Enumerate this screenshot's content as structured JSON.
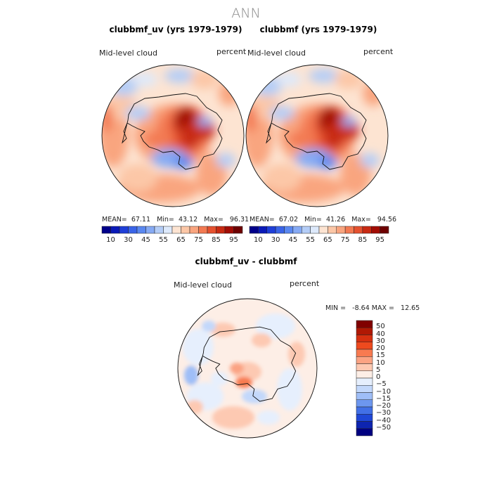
{
  "chart_data": {
    "type": "contour-map",
    "suptitle": "ANN",
    "panels": [
      {
        "title": "clubbmf_uv (yrs 1979-1979)",
        "left_label": "Mid-level cloud",
        "right_label": "percent",
        "mean": "67.11",
        "min": "43.12",
        "max": "96.31",
        "stat_labels": {
          "mean": "MEAN=",
          "min": "Min=",
          "max": "Max="
        }
      },
      {
        "title": "clubbmf (yrs 1979-1979)",
        "left_label": "Mid-level cloud",
        "right_label": "percent",
        "mean": "67.02",
        "min": "41.26",
        "max": "94.56",
        "stat_labels": {
          "mean": "MEAN=",
          "min": "Min=",
          "max": "Max="
        }
      },
      {
        "title": "clubbmf_uv - clubbmf",
        "left_label": "Mid-level cloud",
        "right_label": "percent",
        "min_label": "MIN =",
        "max_label": "MAX =",
        "min": "-8.64",
        "max": "12.65"
      }
    ],
    "colorbar_top": {
      "levels": [
        10,
        20,
        30,
        40,
        45,
        50,
        55,
        60,
        65,
        70,
        75,
        80,
        85,
        90,
        95
      ],
      "tick_labels": [
        "10",
        "30",
        "45",
        "55",
        "65",
        "75",
        "85",
        "95"
      ],
      "colors": [
        "#00008a",
        "#0a1ab8",
        "#1f3fd8",
        "#3a64e8",
        "#5a88f0",
        "#86aaf4",
        "#b4cdf7",
        "#dde9fb",
        "#fde4d2",
        "#fcc7a7",
        "#f9a57f",
        "#f37a52",
        "#e5512f",
        "#c82a12",
        "#a20c04",
        "#6e0000"
      ]
    },
    "colorbar_diff": {
      "levels": [
        50,
        40,
        30,
        20,
        15,
        10,
        5,
        0,
        -5,
        -10,
        -15,
        -20,
        -30,
        -40,
        -50
      ],
      "tick_labels": [
        "50",
        "40",
        "30",
        "20",
        "15",
        "10",
        "5",
        "0",
        "−5",
        "−10",
        "−15",
        "−20",
        "−30",
        "−40",
        "−50"
      ],
      "colors": [
        "#800000",
        "#b01804",
        "#d63010",
        "#ee4a1e",
        "#f87a50",
        "#fba383",
        "#fdc9b2",
        "#fdeee6",
        "#e6effd",
        "#c3d8fb",
        "#9fbef7",
        "#6d97ef",
        "#4270e6",
        "#1f47d6",
        "#0d24b0",
        "#000080"
      ]
    }
  }
}
